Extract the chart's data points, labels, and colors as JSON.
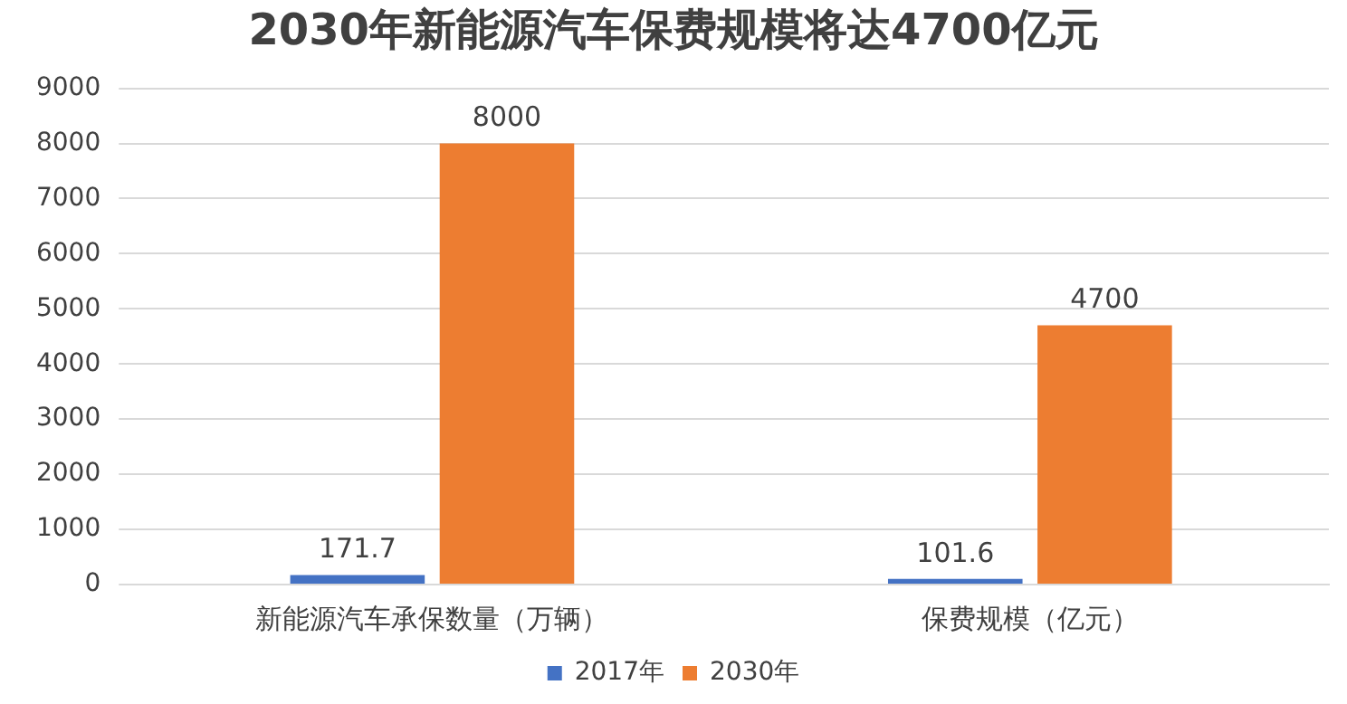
{
  "chart_data": {
    "type": "bar",
    "title": "2030年新能源汽车保费规模将达4700亿元",
    "categories": [
      "新能源汽车承保数量（万辆）",
      "保费规模（亿元）"
    ],
    "series": [
      {
        "name": "2017年",
        "color": "#4472c4",
        "values": [
          171.7,
          101.6
        ]
      },
      {
        "name": "2030年",
        "color": "#ed7d31",
        "values": [
          8000,
          4700
        ]
      }
    ],
    "ylim": [
      0,
      9000
    ],
    "yticks": [
      0,
      1000,
      2000,
      3000,
      4000,
      5000,
      6000,
      7000,
      8000,
      9000
    ],
    "grid": "y",
    "legend": "bottom",
    "data_labels": true
  }
}
